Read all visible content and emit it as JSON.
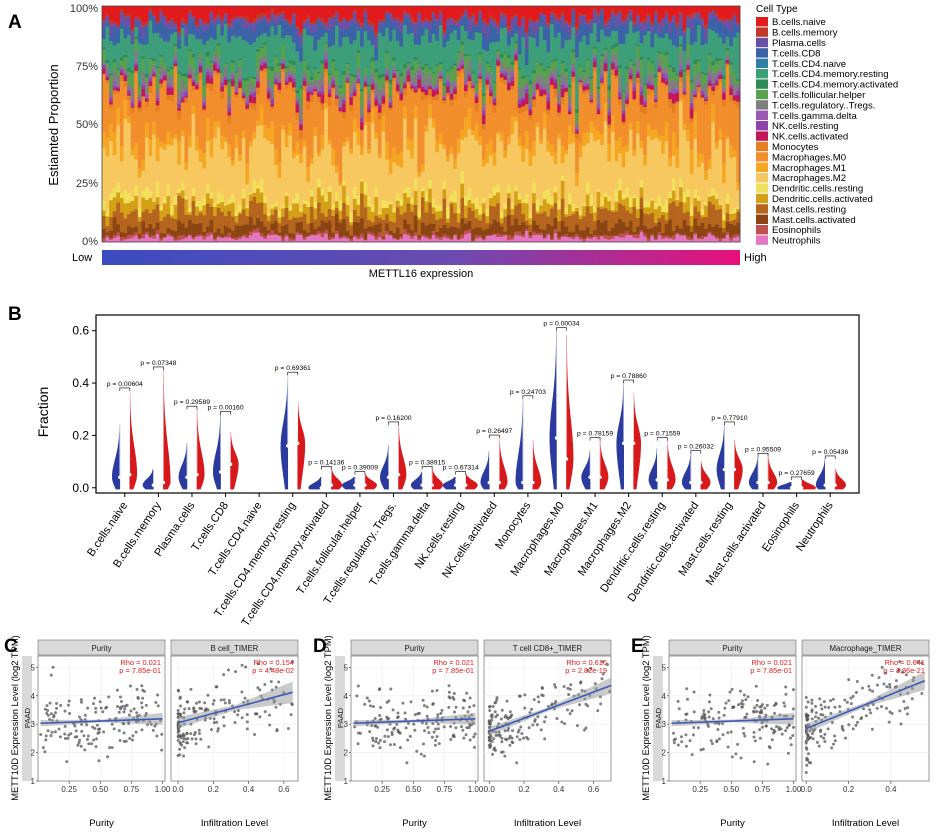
{
  "panels": {
    "A": "A",
    "B": "B",
    "C": "C",
    "D": "D",
    "E": "E"
  },
  "colors": {
    "cell_types": [
      "#E31A1C",
      "#C0392B",
      "#6A51A3",
      "#3B63A8",
      "#2F7FA6",
      "#3D9E7A",
      "#2E8B57",
      "#59A14F",
      "#7F7F7F",
      "#9B59B6",
      "#8E44AD",
      "#C2185B",
      "#E67E22",
      "#F28E2B",
      "#F5A623",
      "#F6C85F",
      "#F1E05A",
      "#D4A017",
      "#B5651D",
      "#8B4513",
      "#C0504D",
      "#E377C2"
    ],
    "low_color": "#3B4CC0",
    "high_color": "#E8107A",
    "blue": "#2B3A9E",
    "red": "#D7191C",
    "pval_red": "#E41A1C",
    "line_blue": "#3A5BB8"
  },
  "chart_data": [
    {
      "panel": "A",
      "type": "area",
      "subtype": "stacked_bar_100",
      "title": "",
      "ylabel": "Estiamted Proportion",
      "yticks": [
        "0%",
        "25%",
        "50%",
        "75%",
        "100%"
      ],
      "ylim": [
        0,
        100
      ],
      "n_samples": 178,
      "legend_title": "Cell Type",
      "legend_position": "right",
      "legend": [
        "B.cells.naive",
        "B.cells.memory",
        "Plasma.cells",
        "T.cells.CD8",
        "T.cells.CD4.naive",
        "T.cells.CD4.memory.resting",
        "T.cells.CD4.memory.activated",
        "T.cells.follicular.helper",
        "T.cells.regulatory..Tregs.",
        "T.cells.gamma.delta",
        "NK.cells.resting",
        "NK.cells.activated",
        "Monocytes",
        "Macrophages.M0",
        "Macrophages.M1",
        "Macrophages.M2",
        "Dendritic.cells.resting",
        "Dendritic.cells.activated",
        "Mast.cells.resting",
        "Mast.cells.activated",
        "Eosinophils",
        "Neutrophils"
      ],
      "mean_proportions_bottom_to_top": {
        "Neutrophils": 2,
        "Eosinophils": 1,
        "Mast.cells.activated": 4,
        "Mast.cells.resting": 6,
        "Dendritic.cells.activated": 4,
        "Dendritic.cells.resting": 3,
        "Macrophages.M2": 20,
        "Macrophages.M1": 5,
        "Macrophages.M0": 18,
        "Monocytes": 2,
        "NK.cells.activated": 2,
        "NK.cells.resting": 1,
        "T.cells.gamma.delta": 1,
        "T.cells.regulatory..Tregs.": 3,
        "T.cells.follicular.helper": 4,
        "T.cells.CD4.memory.activated": 1,
        "T.cells.CD4.memory.resting": 12,
        "T.cells.CD4.naive": 0,
        "T.cells.CD8": 5,
        "Plasma.cells": 3,
        "B.cells.memory": 1,
        "B.cells.naive": 4
      },
      "gradient_label": "METTL16 expression",
      "gradient_low": "Low",
      "gradient_high": "High"
    },
    {
      "panel": "B",
      "type": "scatter",
      "subtype": "split_violin",
      "ylabel": "Fraction",
      "yticks": [
        "0.0",
        "0.2",
        "0.4",
        "0.6"
      ],
      "ylim": [
        -0.02,
        0.66
      ],
      "groups": [
        "low",
        "high"
      ],
      "categories": [
        {
          "name": "B.cells.naive",
          "p": "p = 0.00604",
          "low_med": 0.04,
          "low_max": 0.24,
          "high_med": 0.05,
          "high_max": 0.37
        },
        {
          "name": "B.cells.memory",
          "p": "p = 0.07348",
          "low_med": 0.01,
          "low_max": 0.07,
          "high_med": 0.02,
          "high_max": 0.45
        },
        {
          "name": "Plasma.cells",
          "p": "p = 0.29589",
          "low_med": 0.04,
          "low_max": 0.17,
          "high_med": 0.05,
          "high_max": 0.3
        },
        {
          "name": "T.cells.CD8",
          "p": "p = 0.00160",
          "low_med": 0.06,
          "low_max": 0.28,
          "high_med": 0.09,
          "high_max": 0.21
        },
        {
          "name": "T.cells.CD4.naive",
          "p": "",
          "low_med": 0,
          "low_max": 0,
          "high_med": 0,
          "high_max": 0
        },
        {
          "name": "T.cells.CD4.memory.resting",
          "p": "p = 0.69361",
          "low_med": 0.16,
          "low_max": 0.43,
          "high_med": 0.17,
          "high_max": 0.33
        },
        {
          "name": "T.cells.CD4.memory.activated",
          "p": "p = 0.14136",
          "low_med": 0.0,
          "low_max": 0.04,
          "high_med": 0.01,
          "high_max": 0.07
        },
        {
          "name": "T.cells.follicular.helper",
          "p": "p = 0.39009",
          "low_med": 0.01,
          "low_max": 0.04,
          "high_med": 0.01,
          "high_max": 0.05
        },
        {
          "name": "T.cells.regulatory..Tregs.",
          "p": "p = 0.16200",
          "low_med": 0.04,
          "low_max": 0.16,
          "high_med": 0.05,
          "high_max": 0.24
        },
        {
          "name": "T.cells.gamma.delta",
          "p": "p = 0.38915",
          "low_med": 0.01,
          "low_max": 0.06,
          "high_med": 0.01,
          "high_max": 0.07
        },
        {
          "name": "NK.cells.resting",
          "p": "p = 0.67314",
          "low_med": 0.01,
          "low_max": 0.04,
          "high_med": 0.01,
          "high_max": 0.05
        },
        {
          "name": "NK.cells.activated",
          "p": "p = 0.26497",
          "low_med": 0.02,
          "low_max": 0.14,
          "high_med": 0.02,
          "high_max": 0.19
        },
        {
          "name": "Monocytes",
          "p": "p = 0.24703",
          "low_med": 0.02,
          "low_max": 0.34,
          "high_med": 0.02,
          "high_max": 0.18
        },
        {
          "name": "Macrophages.M0",
          "p": "p = 0.00034",
          "low_med": 0.19,
          "low_max": 0.6,
          "high_med": 0.11,
          "high_max": 0.58
        },
        {
          "name": "Macrophages.M1",
          "p": "p = 0.78159",
          "low_med": 0.04,
          "low_max": 0.14,
          "high_med": 0.04,
          "high_max": 0.18
        },
        {
          "name": "Macrophages.M2",
          "p": "p = 0.78860",
          "low_med": 0.17,
          "low_max": 0.4,
          "high_med": 0.17,
          "high_max": 0.36
        },
        {
          "name": "Dendritic.cells.resting",
          "p": "p = 0.71559",
          "low_med": 0.03,
          "low_max": 0.15,
          "high_med": 0.03,
          "high_max": 0.18
        },
        {
          "name": "Dendritic.cells.activated",
          "p": "p = 0.26032",
          "low_med": 0.02,
          "low_max": 0.13,
          "high_med": 0.02,
          "high_max": 0.1
        },
        {
          "name": "Mast.cells.resting",
          "p": "p = 0.77910",
          "low_med": 0.07,
          "low_max": 0.24,
          "high_med": 0.07,
          "high_max": 0.18
        },
        {
          "name": "Mast.cells.activated",
          "p": "p = 0.95509",
          "low_med": 0.02,
          "low_max": 0.12,
          "high_med": 0.02,
          "high_max": 0.12
        },
        {
          "name": "Eosinophils",
          "p": "p = 0.27659",
          "low_med": 0.0,
          "low_max": 0.02,
          "high_med": 0.0,
          "high_max": 0.03
        },
        {
          "name": "Neutrophils",
          "p": "p = 0.05436",
          "low_med": 0.01,
          "low_max": 0.11,
          "high_med": 0.01,
          "high_max": 0.07
        }
      ]
    },
    {
      "panel": "C",
      "type": "scatter",
      "ylabel": "METT10D Expression Level (log2 TPM)",
      "row_label": "PAAD",
      "yticks": [
        "1",
        "2",
        "3",
        "4",
        "5"
      ],
      "ylim": [
        1,
        5.4
      ],
      "facets": [
        {
          "strip": "Purity",
          "xlabel": "Purity",
          "xticks": [
            "0.25",
            "0.50",
            "0.75",
            "1.00"
          ],
          "xlim": [
            0.0,
            1.02
          ],
          "xtick_values": [
            0.25,
            0.5,
            0.75,
            1.0
          ],
          "rho": "Rho = 0.021",
          "p": "p = 7.85e-01",
          "slope": 0.16,
          "intercept": 3.03,
          "ci": 0.11,
          "xrange": [
            0.02,
            1.0
          ],
          "seed": 11
        },
        {
          "strip": "B cell_TIMER",
          "xlabel": "Infiltration Level",
          "xticks": [
            "0.0",
            "0.2",
            "0.4",
            "0.6"
          ],
          "xlim": [
            -0.04,
            0.68
          ],
          "xtick_values": [
            0,
            0.2,
            0.4,
            0.6
          ],
          "rho": "Rho = 0.154",
          "p": "p = 4.48e-02",
          "slope": 1.65,
          "intercept": 3.05,
          "ci": 0.2,
          "xrange": [
            0.0,
            0.65
          ],
          "seed": 23
        }
      ]
    },
    {
      "panel": "D",
      "type": "scatter",
      "ylabel": "METT10D Expression Level (log2 TPM)",
      "row_label": "PAAD",
      "yticks": [
        "1",
        "2",
        "3",
        "4",
        "5"
      ],
      "ylim": [
        1,
        5.4
      ],
      "facets": [
        {
          "strip": "Purity",
          "xlabel": "Purity",
          "xticks": [
            "0.25",
            "0.50",
            "0.75",
            "1.00"
          ],
          "xlim": [
            0.0,
            1.02
          ],
          "xtick_values": [
            0.25,
            0.5,
            0.75,
            1.0
          ],
          "rho": "Rho = 0.021",
          "p": "p = 7.85e-01",
          "slope": 0.16,
          "intercept": 3.03,
          "ci": 0.11,
          "xrange": [
            0.02,
            1.0
          ],
          "seed": 31
        },
        {
          "strip": "T cell CD8+_TIMER",
          "xlabel": "Infiltration Level",
          "xticks": [
            "0.0",
            "0.2",
            "0.4",
            "0.6"
          ],
          "xlim": [
            -0.03,
            0.7
          ],
          "xtick_values": [
            0,
            0.2,
            0.4,
            0.6
          ],
          "rho": "Rho = 0.616",
          "p": "p = 2.82e-19",
          "slope": 2.3,
          "intercept": 2.75,
          "ci": 0.15,
          "xrange": [
            0.0,
            0.7
          ],
          "seed": 47
        }
      ]
    },
    {
      "panel": "E",
      "type": "scatter",
      "ylabel": "METT10D Expression Level (log2 TPM)",
      "row_label": "PAAD",
      "yticks": [
        "1",
        "2",
        "3",
        "4",
        "5"
      ],
      "ylim": [
        1,
        5.4
      ],
      "facets": [
        {
          "strip": "Purity",
          "xlabel": "Purity",
          "xticks": [
            "0.25",
            "0.50",
            "0.75",
            "1.00"
          ],
          "xlim": [
            0.0,
            1.02
          ],
          "xtick_values": [
            0.25,
            0.5,
            0.75,
            1.0
          ],
          "rho": "Rho = 0.021",
          "p": "p = 7.85e-01",
          "slope": 0.16,
          "intercept": 3.03,
          "ci": 0.11,
          "xrange": [
            0.02,
            1.0
          ],
          "seed": 53
        },
        {
          "strip": "Macrophage_TIMER",
          "xlabel": "Infiltration Level",
          "xticks": [
            "0.0",
            "0.2",
            "0.4"
          ],
          "xlim": [
            -0.02,
            0.58
          ],
          "xtick_values": [
            0,
            0.2,
            0.4
          ],
          "rho": "Rho = 0.641",
          "p": "p = 3.96e-21",
          "slope": 3.0,
          "intercept": 2.85,
          "ci": 0.17,
          "xrange": [
            0.0,
            0.56
          ],
          "seed": 67
        }
      ]
    }
  ]
}
